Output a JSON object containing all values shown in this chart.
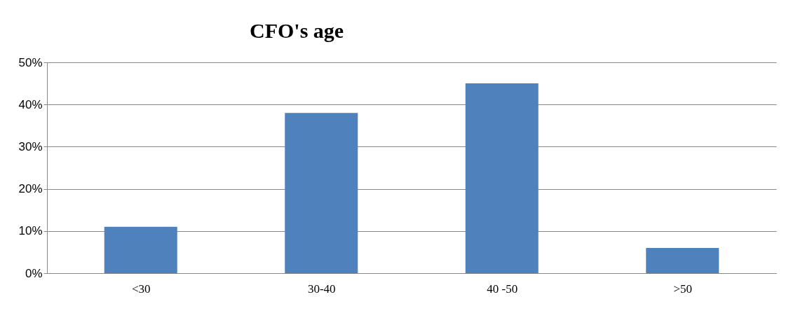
{
  "chart_data": {
    "type": "bar",
    "title": "CFO's age",
    "categories": [
      "<30",
      "30-40",
      "40 -50",
      ">50"
    ],
    "values": [
      11,
      38,
      45,
      6
    ],
    "color": "#4f81bd",
    "ylim": [
      0,
      50
    ],
    "yticks": [
      {
        "value": 0,
        "label": "0%"
      },
      {
        "value": 10,
        "label": "10%"
      },
      {
        "value": 20,
        "label": "20%"
      },
      {
        "value": 30,
        "label": "30%"
      },
      {
        "value": 40,
        "label": "40%"
      },
      {
        "value": 50,
        "label": "50%"
      }
    ],
    "grid": "y"
  }
}
